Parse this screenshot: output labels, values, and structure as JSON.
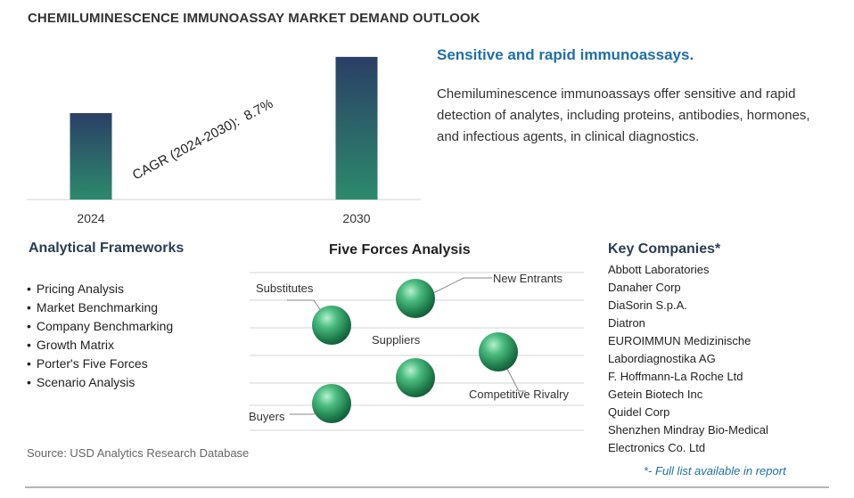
{
  "title": "CHEMILUMINESCENCE IMMUNOASSAY MARKET DEMAND OUTLOOK",
  "chart_data": {
    "type": "bar",
    "categories": [
      "2024",
      "2030"
    ],
    "values": [
      1,
      1.65
    ],
    "ylim": [
      0,
      1.7
    ],
    "annotation": "CAGR (2024-2030):  8.7%",
    "colors": {
      "bar_top": "#2b3f66",
      "bar_bottom": "#2c8a6c"
    }
  },
  "headline": "Sensitive and rapid immunoassays.",
  "description": "Chemiluminescence immunoassays offer sensitive and rapid detection of analytes, including proteins, antibodies, hormones, and infectious agents, in clinical diagnostics.",
  "frameworks": {
    "title": "Analytical Frameworks",
    "items": [
      "Pricing Analysis",
      "Market Benchmarking",
      "Company Benchmarking",
      "Growth Matrix",
      "Porter's Five Forces",
      "Scenario Analysis"
    ]
  },
  "five_forces": {
    "title": "Five Forces Analysis",
    "labels": {
      "substitutes": "Substitutes",
      "new_entrants": "New Entrants",
      "suppliers": "Suppliers",
      "competitive_rivalry": "Competitive Rivalry",
      "buyers": "Buyers"
    }
  },
  "key_companies": {
    "title": "Key Companies*",
    "items": [
      "Abbott Laboratories",
      "Danaher Corp",
      "DiaSorin S.p.A.",
      "Diatron",
      "EUROIMMUN Medizinische",
      "Labordiagnostika AG",
      "F. Hoffmann-La Roche Ltd",
      "Getein Biotech Inc",
      "Quidel Corp",
      "Shenzhen Mindray Bio-Medical",
      "Electronics Co. Ltd"
    ],
    "note": "*- Full list available in report"
  },
  "source": "Source: USD Analytics Research Database"
}
